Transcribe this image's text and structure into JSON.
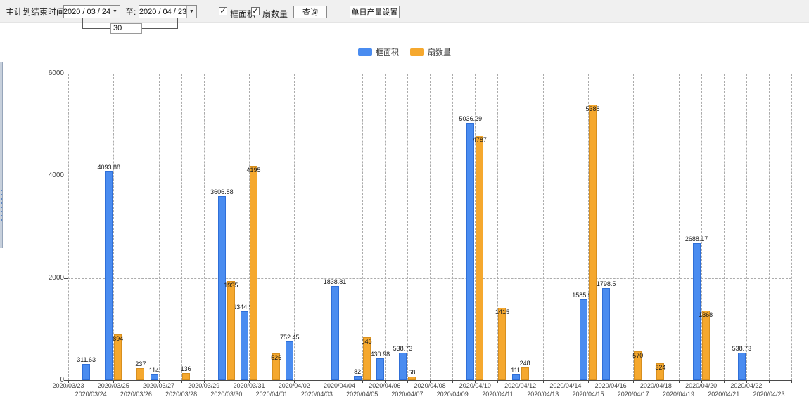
{
  "toolbar": {
    "end_time_label": "主计划结束时间:",
    "date_from": "2020 / 03 / 24",
    "to_label": "至:",
    "date_to": "2020 / 04 / 23",
    "days_value": "30",
    "checkboxes": [
      {
        "label": "框面积",
        "checked": true
      },
      {
        "label": "扇数量",
        "checked": true
      }
    ],
    "check_glyph": "✓",
    "dropdown_glyph": "▼",
    "query_button": "查询",
    "daily_output_button": "单日产量设置"
  },
  "legend": [
    {
      "label": "框面积",
      "color": "#4a8cf0"
    },
    {
      "label": "扇数量",
      "color": "#f5a82e"
    }
  ],
  "chart_data": {
    "type": "bar",
    "title": "",
    "xlabel": "",
    "ylabel": "",
    "ylim": [
      0,
      6000
    ],
    "yticks": [
      0,
      2000,
      4000,
      6000
    ],
    "grid": true,
    "legend_position": "top",
    "categories": [
      "2020/03/23",
      "2020/03/24",
      "2020/03/25",
      "2020/03/26",
      "2020/03/27",
      "2020/03/28",
      "2020/03/29",
      "2020/03/30",
      "2020/03/31",
      "2020/04/01",
      "2020/04/02",
      "2020/04/03",
      "2020/04/04",
      "2020/04/05",
      "2020/04/06",
      "2020/04/07",
      "2020/04/08",
      "2020/04/09",
      "2020/04/10",
      "2020/04/11",
      "2020/04/12",
      "2020/04/13",
      "2020/04/14",
      "2020/04/15",
      "2020/04/16",
      "2020/04/17",
      "2020/04/18",
      "2020/04/19",
      "2020/04/20",
      "2020/04/21",
      "2020/04/22",
      "2020/04/23"
    ],
    "series": [
      {
        "name": "框面积",
        "color": "#4a8cf0",
        "values": [
          null,
          311.63,
          4093.88,
          null,
          114,
          null,
          null,
          3606.88,
          1344.95,
          null,
          752.45,
          null,
          1838.81,
          82,
          430.98,
          538.73,
          null,
          null,
          5036.29,
          null,
          111,
          null,
          null,
          1585.96,
          1798.5,
          null,
          null,
          null,
          2688.17,
          null,
          538.73,
          null
        ]
      },
      {
        "name": "扇数量",
        "color": "#f5a82e",
        "values": [
          null,
          null,
          894,
          237,
          null,
          136,
          null,
          1935,
          4195,
          526,
          null,
          null,
          null,
          846,
          null,
          68,
          null,
          null,
          4787,
          1415,
          248,
          null,
          null,
          5388,
          null,
          570,
          324,
          null,
          1368,
          null,
          null,
          null
        ]
      }
    ]
  }
}
